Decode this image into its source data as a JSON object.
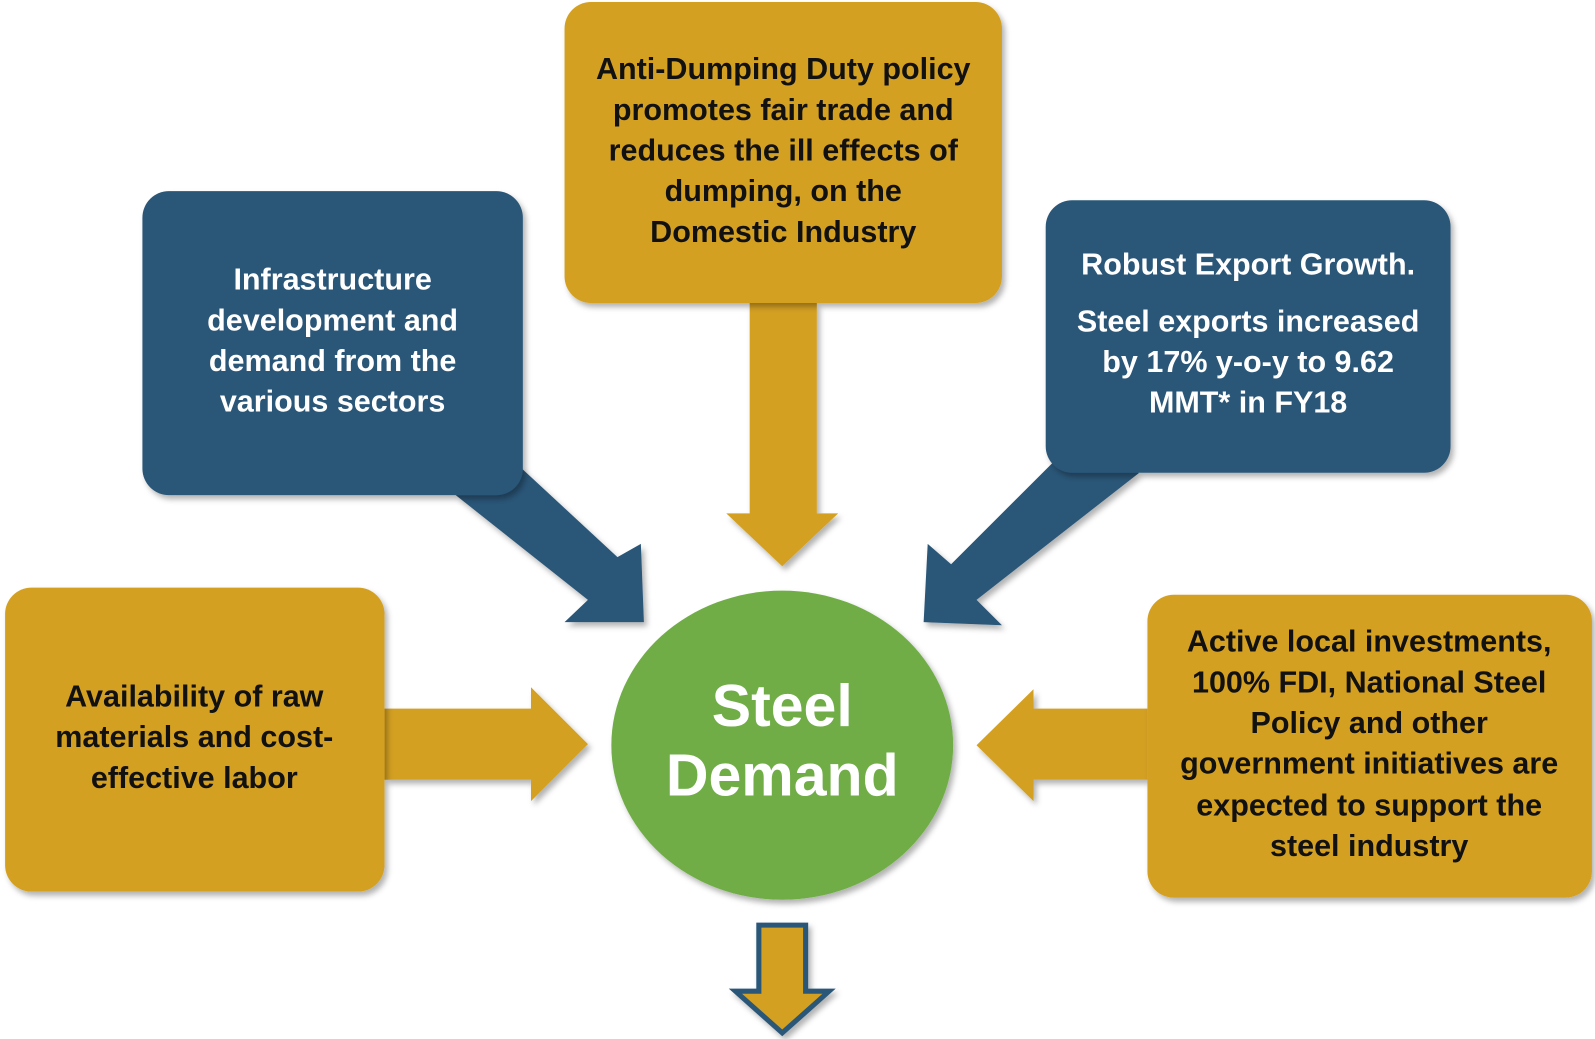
{
  "center": {
    "lines": [
      "Steel",
      "Demand"
    ]
  },
  "nodes": [
    {
      "lines": [
        "Anti-Dumping Duty policy",
        "promotes fair trade and",
        "reduces the ill effects of",
        "dumping, on the",
        "Domestic Industry"
      ]
    },
    {
      "lines": [
        "Infrastructure",
        "development and",
        "demand from the",
        "various sectors"
      ]
    },
    {
      "lines": [
        "Robust Export Growth.",
        "Steel exports increased",
        "by 17% y-o-y to 9.62",
        "MMT* in FY18"
      ]
    },
    {
      "lines": [
        "Availability of raw",
        "materials and cost-",
        "effective labor"
      ]
    },
    {
      "lines": [
        "Active local investments,",
        "100% FDI, National Steel",
        "Policy and other",
        "government initiatives are",
        "expected to support the",
        "steel industry"
      ]
    }
  ]
}
